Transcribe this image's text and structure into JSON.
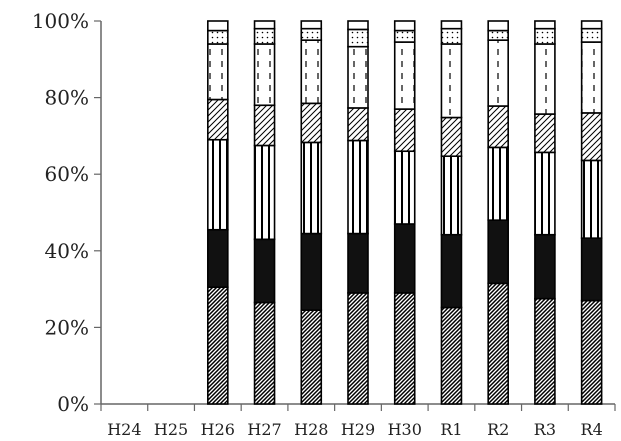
{
  "chart_data": {
    "type": "bar",
    "stacked": true,
    "percent": true,
    "categories": [
      "H24",
      "H25",
      "H26",
      "H27",
      "H28",
      "H29",
      "H30",
      "R1",
      "R2",
      "R3",
      "R4"
    ],
    "ylim": [
      0,
      100
    ],
    "yticks": [
      "0%",
      "20%",
      "40%",
      "60%",
      "80%",
      "100%"
    ],
    "grid": false,
    "legend": "none",
    "title": "",
    "xlabel": "",
    "ylabel": "",
    "series": [
      {
        "pattern": "dense-diagonal-hatch",
        "values": [
          null,
          null,
          30.5,
          26.5,
          24.5,
          29,
          29,
          25.2,
          31.5,
          27.5,
          27
        ]
      },
      {
        "pattern": "solid-black",
        "values": [
          null,
          null,
          15,
          16.5,
          20,
          15.5,
          18,
          19,
          16.5,
          16.7,
          16.3
        ]
      },
      {
        "pattern": "vertical-stripes",
        "values": [
          null,
          null,
          23.5,
          24.5,
          23.8,
          24.3,
          19,
          20.5,
          19,
          21.5,
          20.3
        ]
      },
      {
        "pattern": "light-diagonal-hatch",
        "values": [
          null,
          null,
          10.5,
          10.5,
          10.2,
          8.5,
          11,
          10.1,
          10.8,
          10,
          12.4
        ]
      },
      {
        "pattern": "vertical-dashes",
        "values": [
          null,
          null,
          14.5,
          16,
          16.5,
          16,
          17.5,
          19.2,
          17.2,
          18.3,
          18.5
        ]
      },
      {
        "pattern": "dots",
        "values": [
          null,
          null,
          3.5,
          4,
          3,
          4.5,
          3,
          4,
          2.5,
          4,
          3.5
        ]
      },
      {
        "pattern": "blank",
        "values": [
          null,
          null,
          2.5,
          2,
          2,
          2.2,
          2.5,
          2,
          2.5,
          2,
          2
        ]
      }
    ]
  }
}
